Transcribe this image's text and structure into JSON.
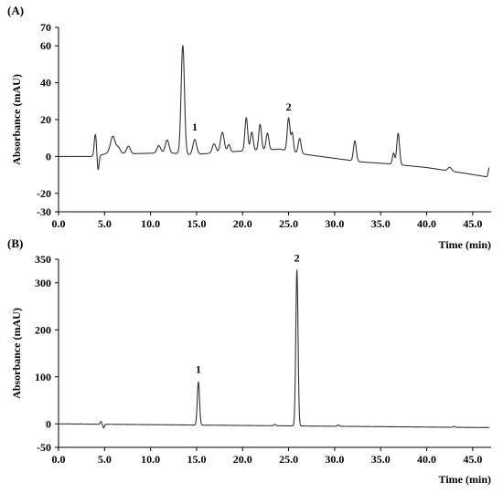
{
  "chart_data": [
    {
      "type": "line",
      "panel_label": "(A)",
      "xlabel": "Time (min)",
      "ylabel": "Absorbance (mAU)",
      "xlim": [
        0,
        47
      ],
      "ylim": [
        -30,
        70
      ],
      "x_ticks": [
        0,
        5,
        10,
        15,
        20,
        25,
        30,
        35,
        40,
        45
      ],
      "x_tick_labels": [
        "0.0",
        "5.0",
        "10.0",
        "15.0",
        "20.0",
        "25.0",
        "30.0",
        "35.0",
        "40.0",
        "45.0"
      ],
      "y_ticks": [
        -30,
        -20,
        0,
        20,
        40,
        60,
        70
      ],
      "y_tick_labels": [
        "-30",
        "-20",
        "0",
        "20",
        "40",
        "60",
        "70"
      ],
      "line_color": "#333333",
      "grid": false,
      "baseline": [
        [
          0,
          0
        ],
        [
          4.0,
          0
        ],
        [
          5.5,
          2
        ],
        [
          8,
          1.5
        ],
        [
          12,
          2
        ],
        [
          14,
          1
        ],
        [
          16,
          1.5
        ],
        [
          20,
          3
        ],
        [
          24,
          4
        ],
        [
          27,
          1
        ],
        [
          30,
          -1
        ],
        [
          33,
          -3
        ],
        [
          36,
          -4
        ],
        [
          40,
          -6
        ],
        [
          44,
          -9
        ],
        [
          46.5,
          -11
        ]
      ],
      "peaks": [
        [
          4.0,
          12,
          0.12
        ],
        [
          4.3,
          -8,
          0.1
        ],
        [
          5.9,
          9,
          0.25
        ],
        [
          6.5,
          3,
          0.2
        ],
        [
          7.6,
          4,
          0.2
        ],
        [
          10.9,
          4,
          0.2
        ],
        [
          11.8,
          7,
          0.2
        ],
        [
          13.5,
          59,
          0.18
        ],
        [
          14.8,
          8,
          0.2
        ],
        [
          16.9,
          5,
          0.2
        ],
        [
          17.8,
          11,
          0.2
        ],
        [
          18.5,
          4,
          0.15
        ],
        [
          20.4,
          18,
          0.15
        ],
        [
          21.0,
          10,
          0.15
        ],
        [
          21.9,
          14,
          0.15
        ],
        [
          22.7,
          9,
          0.15
        ],
        [
          25.0,
          18,
          0.15
        ],
        [
          25.4,
          10,
          0.12
        ],
        [
          26.2,
          8,
          0.15
        ],
        [
          32.2,
          11,
          0.15
        ],
        [
          36.4,
          6,
          0.12
        ],
        [
          36.9,
          17,
          0.15
        ],
        [
          42.5,
          2,
          0.2
        ],
        [
          46.8,
          5,
          0.1
        ]
      ],
      "annotations": [
        {
          "text": "1",
          "x": 14.8,
          "y": 14
        },
        {
          "text": "2",
          "x": 25.0,
          "y": 25
        }
      ]
    },
    {
      "type": "line",
      "panel_label": "(B)",
      "xlabel": "Time (min)",
      "ylabel": "Absorbance (mAU)",
      "xlim": [
        0,
        47
      ],
      "ylim": [
        -50,
        350
      ],
      "x_ticks": [
        0,
        5,
        10,
        15,
        20,
        25,
        30,
        35,
        40,
        45
      ],
      "x_tick_labels": [
        "0.0",
        "5.0",
        "10.0",
        "15.0",
        "20.0",
        "25.0",
        "30.0",
        "35.0",
        "40.0",
        "45.0"
      ],
      "y_ticks": [
        -50,
        0,
        100,
        200,
        300,
        350
      ],
      "y_tick_labels": [
        "-50",
        "0",
        "100",
        "200",
        "300",
        "350"
      ],
      "line_color": "#333333",
      "grid": false,
      "baseline": [
        [
          0,
          0
        ],
        [
          46.8,
          -8
        ]
      ],
      "peaks": [
        [
          4.6,
          6,
          0.08
        ],
        [
          4.9,
          -8,
          0.08
        ],
        [
          15.2,
          92,
          0.12
        ],
        [
          23.5,
          3,
          0.1
        ],
        [
          25.9,
          332,
          0.12
        ],
        [
          30.4,
          3,
          0.1
        ],
        [
          43.0,
          2,
          0.1
        ]
      ],
      "annotations": [
        {
          "text": "1",
          "x": 15.2,
          "y": 108
        },
        {
          "text": "2",
          "x": 25.9,
          "y": 345
        }
      ]
    }
  ]
}
